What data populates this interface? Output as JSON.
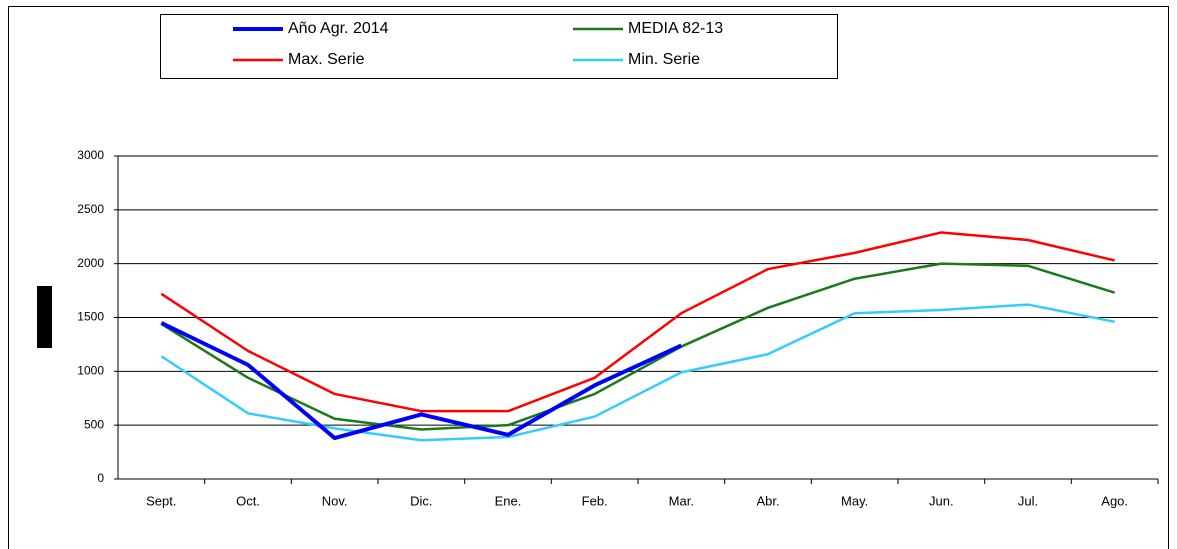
{
  "chart_data": {
    "type": "line",
    "categories": [
      "Sept.",
      "Oct.",
      "Nov.",
      "Dic.",
      "Ene.",
      "Feb.",
      "Mar.",
      "Abr.",
      "May.",
      "Jun.",
      "Jul.",
      "Ago."
    ],
    "series": [
      {
        "name": "Año Agr. 2014",
        "color": "#0000ff",
        "values": [
          1450,
          1060,
          380,
          600,
          410,
          870,
          1240,
          null,
          null,
          null,
          null,
          null
        ]
      },
      {
        "name": "MEDIA 82-13",
        "color": "#1a7a1a",
        "values": [
          1440,
          940,
          560,
          460,
          500,
          790,
          1230,
          1590,
          1860,
          2000,
          1980,
          1730
        ]
      },
      {
        "name": "Max. Serie",
        "color": "#ff0000",
        "values": [
          1720,
          1190,
          790,
          630,
          630,
          940,
          1540,
          1950,
          2100,
          2290,
          2220,
          2030
        ]
      },
      {
        "name": "Min. Serie",
        "color": "#33ccff",
        "values": [
          1140,
          610,
          470,
          360,
          390,
          580,
          990,
          1160,
          1540,
          1570,
          1620,
          1460
        ]
      }
    ],
    "ylim": [
      0,
      3000
    ],
    "yticks": [
      0,
      500,
      1000,
      1500,
      2000,
      2500,
      3000
    ],
    "grid": true
  }
}
